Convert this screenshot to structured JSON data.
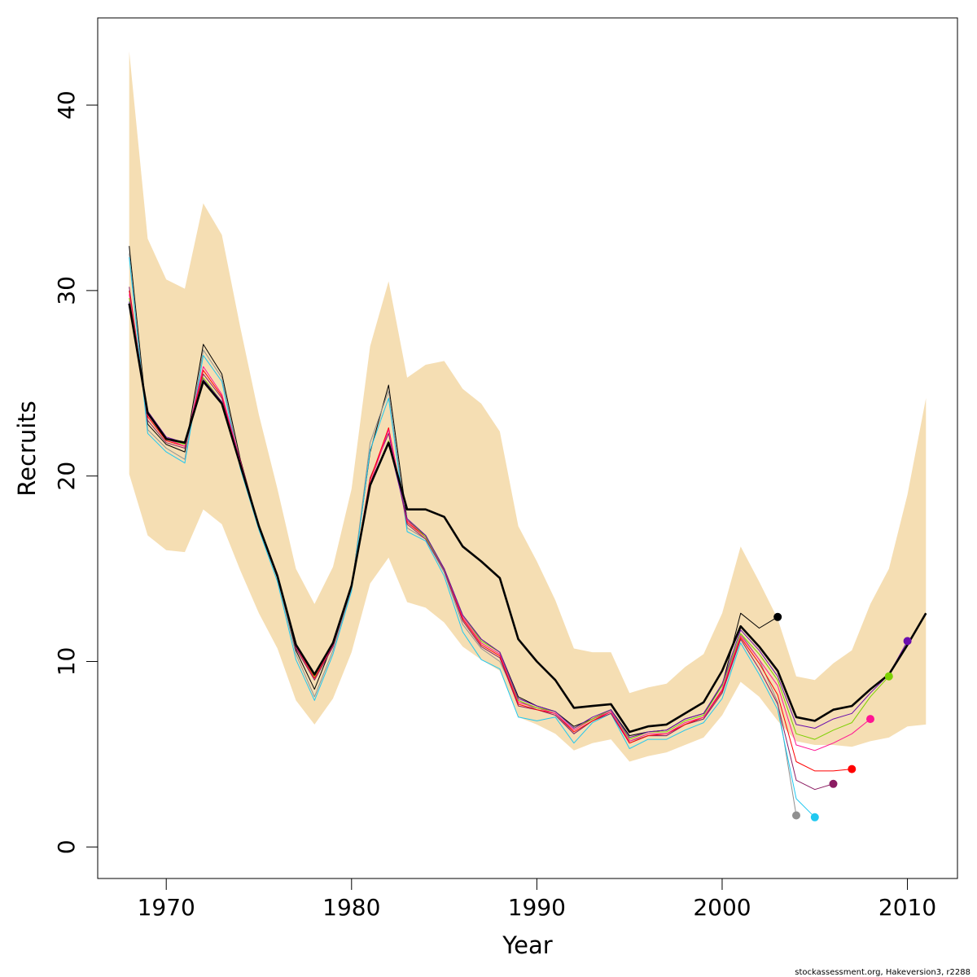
{
  "chart_data": {
    "type": "line",
    "xlabel": "Year",
    "ylabel": "Recruits",
    "xlim": [
      1966.3,
      2012.7
    ],
    "ylim": [
      -1.7,
      44.7
    ],
    "x_ticks": [
      1970,
      1980,
      1990,
      2000,
      2010
    ],
    "x_tick_labels": [
      "1970",
      "1980",
      "1990",
      "2000",
      "2010"
    ],
    "y_ticks": [
      0,
      10,
      20,
      30,
      40
    ],
    "y_tick_labels": [
      "0",
      "10",
      "20",
      "30",
      "40"
    ],
    "grid": false,
    "legend": "none",
    "band": {
      "color": "#f5deb3",
      "x": [
        1968,
        1969,
        1970,
        1971,
        1972,
        1973,
        1974,
        1975,
        1976,
        1977,
        1978,
        1979,
        1980,
        1981,
        1982,
        1983,
        1984,
        1985,
        1986,
        1987,
        1988,
        1989,
        1990,
        1991,
        1992,
        1993,
        1994,
        1995,
        1996,
        1997,
        1998,
        1999,
        2000,
        2001,
        2002,
        2003,
        2004,
        2005,
        2006,
        2007,
        2008,
        2009,
        2010,
        2011
      ],
      "lower": [
        20.1,
        16.8,
        16.0,
        15.9,
        18.2,
        17.4,
        14.9,
        12.6,
        10.7,
        7.9,
        6.6,
        8.0,
        10.5,
        14.2,
        15.6,
        13.2,
        12.9,
        12.1,
        10.8,
        10.1,
        9.5,
        7.0,
        6.6,
        6.1,
        5.2,
        5.6,
        5.8,
        4.6,
        4.9,
        5.1,
        5.5,
        5.9,
        7.1,
        8.9,
        8.1,
        6.8,
        5.7,
        5.5,
        5.5,
        5.4,
        5.7,
        5.9,
        6.5,
        6.6
      ],
      "upper": [
        42.9,
        32.8,
        30.6,
        30.1,
        34.7,
        33.0,
        28.0,
        23.3,
        19.3,
        15.0,
        13.1,
        15.1,
        19.3,
        27.0,
        30.5,
        25.3,
        26.0,
        26.2,
        24.7,
        23.9,
        22.4,
        17.3,
        15.4,
        13.3,
        10.7,
        10.5,
        10.5,
        8.3,
        8.6,
        8.8,
        9.7,
        10.4,
        12.6,
        16.2,
        14.3,
        12.3,
        9.2,
        9.0,
        9.9,
        10.6,
        13.1,
        15.0,
        19.0,
        24.2
      ]
    },
    "series": [
      {
        "name": "",
        "color": "#000000",
        "width": 2.6,
        "x": [
          1968,
          1969,
          1970,
          1971,
          1972,
          1973,
          1974,
          1975,
          1976,
          1977,
          1978,
          1979,
          1980,
          1981,
          1982,
          1983,
          1984,
          1985,
          1986,
          1987,
          1988,
          1989,
          1990,
          1991,
          1992,
          1993,
          1994,
          1995,
          1996,
          1997,
          1998,
          1999,
          2000,
          2001,
          2002,
          2003,
          2004,
          2005,
          2006,
          2007,
          2008,
          2009,
          2010,
          2011
        ],
        "y": [
          29.3,
          23.4,
          22.0,
          21.8,
          25.1,
          23.9,
          20.6,
          17.3,
          14.6,
          10.9,
          9.3,
          11.0,
          14.1,
          19.5,
          21.8,
          18.2,
          18.2,
          17.8,
          16.2,
          15.4,
          14.5,
          11.2,
          10.0,
          9.0,
          7.5,
          7.6,
          7.7,
          6.2,
          6.5,
          6.6,
          7.2,
          7.8,
          9.5,
          11.9,
          10.8,
          9.5,
          7.0,
          6.8,
          7.4,
          7.6,
          8.5,
          9.3,
          10.9,
          12.6
        ]
      },
      {
        "name": "",
        "color": "#000000",
        "width": 1.0,
        "end_point": true,
        "x": [
          1968,
          1969,
          1970,
          1971,
          1972,
          1973,
          1974,
          1975,
          1976,
          1977,
          1978,
          1979,
          1980,
          1981,
          1982,
          1983,
          1984,
          1985,
          1986,
          1987,
          1988,
          1989,
          1990,
          1991,
          1992,
          1993,
          1994,
          1995,
          1996,
          1997,
          1998,
          1999,
          2000,
          2001,
          2002,
          2003
        ],
        "y": [
          32.4,
          22.8,
          21.7,
          21.3,
          27.1,
          25.5,
          20.9,
          17.3,
          14.7,
          10.6,
          8.5,
          11.0,
          14.0,
          21.3,
          24.9,
          17.6,
          16.8,
          15.0,
          12.5,
          11.2,
          10.5,
          8.1,
          7.6,
          7.3,
          6.5,
          6.9,
          7.4,
          6.0,
          6.2,
          6.3,
          6.9,
          7.2,
          8.7,
          12.6,
          11.8,
          12.4
        ]
      },
      {
        "name": "",
        "color": "#909090",
        "width": 1.0,
        "end_point": true,
        "x": [
          1968,
          1969,
          1970,
          1971,
          1972,
          1973,
          1974,
          1975,
          1976,
          1977,
          1978,
          1979,
          1980,
          1981,
          1982,
          1983,
          1984,
          1985,
          1986,
          1987,
          1988,
          1989,
          1990,
          1991,
          1992,
          1993,
          1994,
          1995,
          1996,
          1997,
          1998,
          1999,
          2000,
          2001,
          2002,
          2003,
          2004
        ],
        "y": [
          32.0,
          22.5,
          21.5,
          20.9,
          26.8,
          25.3,
          20.6,
          17.2,
          14.5,
          10.4,
          8.1,
          10.6,
          13.9,
          21.8,
          24.6,
          17.2,
          16.6,
          14.8,
          12.0,
          10.7,
          10.0,
          7.9,
          7.4,
          7.2,
          6.1,
          6.8,
          7.3,
          5.7,
          6.0,
          6.0,
          6.6,
          6.9,
          8.5,
          11.5,
          10.1,
          7.8,
          1.7
        ]
      },
      {
        "name": "",
        "color": "#20c8f0",
        "width": 1.0,
        "end_point": true,
        "x": [
          1968,
          1969,
          1970,
          1971,
          1972,
          1973,
          1974,
          1975,
          1976,
          1977,
          1978,
          1979,
          1980,
          1981,
          1982,
          1983,
          1984,
          1985,
          1986,
          1987,
          1988,
          1989,
          1990,
          1991,
          1992,
          1993,
          1994,
          1995,
          1996,
          1997,
          1998,
          1999,
          2000,
          2001,
          2002,
          2003,
          2004,
          2005
        ],
        "y": [
          31.8,
          22.3,
          21.3,
          20.7,
          26.5,
          25.1,
          20.4,
          17.1,
          14.3,
          10.1,
          7.9,
          10.4,
          13.8,
          21.4,
          24.2,
          17.0,
          16.5,
          14.6,
          11.6,
          10.1,
          9.6,
          7.0,
          6.8,
          7.0,
          5.6,
          6.7,
          7.2,
          5.3,
          5.8,
          5.8,
          6.3,
          6.7,
          8.0,
          11.0,
          9.3,
          7.4,
          2.6,
          1.6
        ]
      },
      {
        "name": "",
        "color": "#8b1c62",
        "width": 1.0,
        "end_point": true,
        "x": [
          1968,
          1969,
          1970,
          1971,
          1972,
          1973,
          1974,
          1975,
          1976,
          1977,
          1978,
          1979,
          1980,
          1981,
          1982,
          1983,
          1984,
          1985,
          1986,
          1987,
          1988,
          1989,
          1990,
          1991,
          1992,
          1993,
          1994,
          1995,
          1996,
          1997,
          1998,
          1999,
          2000,
          2001,
          2002,
          2003,
          2004,
          2005,
          2006
        ],
        "y": [
          30.2,
          23.0,
          21.8,
          21.5,
          25.5,
          24.2,
          20.7,
          17.3,
          14.6,
          10.7,
          9.0,
          10.8,
          14.0,
          19.9,
          22.3,
          17.4,
          16.6,
          14.9,
          12.2,
          10.8,
          10.2,
          7.6,
          7.4,
          7.1,
          6.1,
          6.8,
          7.2,
          5.6,
          6.0,
          6.0,
          6.6,
          6.9,
          8.3,
          11.2,
          9.6,
          7.7,
          3.6,
          3.1,
          3.4
        ]
      },
      {
        "name": "",
        "color": "#ff0000",
        "width": 1.0,
        "end_point": true,
        "x": [
          1968,
          1969,
          1970,
          1971,
          1972,
          1973,
          1974,
          1975,
          1976,
          1977,
          1978,
          1979,
          1980,
          1981,
          1982,
          1983,
          1984,
          1985,
          1986,
          1987,
          1988,
          1989,
          1990,
          1991,
          1992,
          1993,
          1994,
          1995,
          1996,
          1997,
          1998,
          1999,
          2000,
          2001,
          2002,
          2003,
          2004,
          2005,
          2006,
          2007
        ],
        "y": [
          30.0,
          23.2,
          21.9,
          21.6,
          25.7,
          24.3,
          20.8,
          17.3,
          14.7,
          10.8,
          9.1,
          10.9,
          14.1,
          19.8,
          22.6,
          17.5,
          16.7,
          15.0,
          12.3,
          10.9,
          10.3,
          7.7,
          7.4,
          7.2,
          6.2,
          6.8,
          7.3,
          5.6,
          6.0,
          6.1,
          6.6,
          7.0,
          8.4,
          11.3,
          9.9,
          8.2,
          4.6,
          4.1,
          4.1,
          4.2
        ]
      },
      {
        "name": "",
        "color": "#ff1493",
        "width": 1.0,
        "end_point": true,
        "x": [
          1968,
          1969,
          1970,
          1971,
          1972,
          1973,
          1974,
          1975,
          1976,
          1977,
          1978,
          1979,
          1980,
          1981,
          1982,
          1983,
          1984,
          1985,
          1986,
          1987,
          1988,
          1989,
          1990,
          1991,
          1992,
          1993,
          1994,
          1995,
          1996,
          1997,
          1998,
          1999,
          2000,
          2001,
          2002,
          2003,
          2004,
          2005,
          2006,
          2007,
          2008
        ],
        "y": [
          29.8,
          23.3,
          22.0,
          21.6,
          25.9,
          24.4,
          20.8,
          17.3,
          14.7,
          10.8,
          9.2,
          10.9,
          14.1,
          19.6,
          22.5,
          17.6,
          16.7,
          15.0,
          12.4,
          11.0,
          10.4,
          7.8,
          7.5,
          7.2,
          6.3,
          6.9,
          7.3,
          5.7,
          6.1,
          6.1,
          6.7,
          7.0,
          8.5,
          11.4,
          10.1,
          8.7,
          5.5,
          5.2,
          5.6,
          6.1,
          6.9
        ]
      },
      {
        "name": "",
        "color": "#7cd000",
        "width": 1.0,
        "end_point": true,
        "x": [
          1968,
          1969,
          1970,
          1971,
          1972,
          1973,
          1974,
          1975,
          1976,
          1977,
          1978,
          1979,
          1980,
          1981,
          1982,
          1983,
          1984,
          1985,
          1986,
          1987,
          1988,
          1989,
          1990,
          1991,
          1992,
          1993,
          1994,
          1995,
          1996,
          1997,
          1998,
          1999,
          2000,
          2001,
          2002,
          2003,
          2004,
          2005,
          2006,
          2007,
          2008,
          2009
        ],
        "y": [
          29.6,
          23.4,
          22.0,
          21.7,
          25.3,
          24.0,
          20.7,
          17.3,
          14.6,
          10.9,
          9.2,
          11.0,
          14.1,
          19.5,
          21.9,
          17.7,
          16.7,
          15.0,
          12.5,
          11.1,
          10.5,
          7.9,
          7.5,
          7.3,
          6.4,
          6.9,
          7.4,
          5.8,
          6.2,
          6.2,
          6.8,
          7.1,
          8.7,
          11.5,
          10.4,
          9.0,
          6.1,
          5.8,
          6.3,
          6.7,
          8.1,
          9.2
        ]
      },
      {
        "name": "",
        "color": "#6a0dad",
        "width": 1.0,
        "end_point": true,
        "x": [
          1968,
          1969,
          1970,
          1971,
          1972,
          1973,
          1974,
          1975,
          1976,
          1977,
          1978,
          1979,
          1980,
          1981,
          1982,
          1983,
          1984,
          1985,
          1986,
          1987,
          1988,
          1989,
          1990,
          1991,
          1992,
          1993,
          1994,
          1995,
          1996,
          1997,
          1998,
          1999,
          2000,
          2001,
          2002,
          2003,
          2004,
          2005,
          2006,
          2007,
          2008,
          2009,
          2010
        ],
        "y": [
          29.4,
          23.5,
          22.1,
          21.8,
          25.2,
          24.0,
          20.7,
          17.3,
          14.6,
          10.9,
          9.3,
          11.0,
          14.1,
          19.5,
          21.8,
          17.7,
          16.8,
          15.0,
          12.5,
          11.2,
          10.5,
          8.0,
          7.6,
          7.3,
          6.4,
          7.0,
          7.4,
          5.9,
          6.2,
          6.3,
          6.9,
          7.2,
          8.8,
          11.7,
          10.6,
          9.2,
          6.6,
          6.4,
          6.9,
          7.2,
          8.3,
          9.3,
          11.1
        ]
      }
    ]
  },
  "footer": {
    "credit": "stockassessment.org, Hakeversion3, r2288"
  }
}
